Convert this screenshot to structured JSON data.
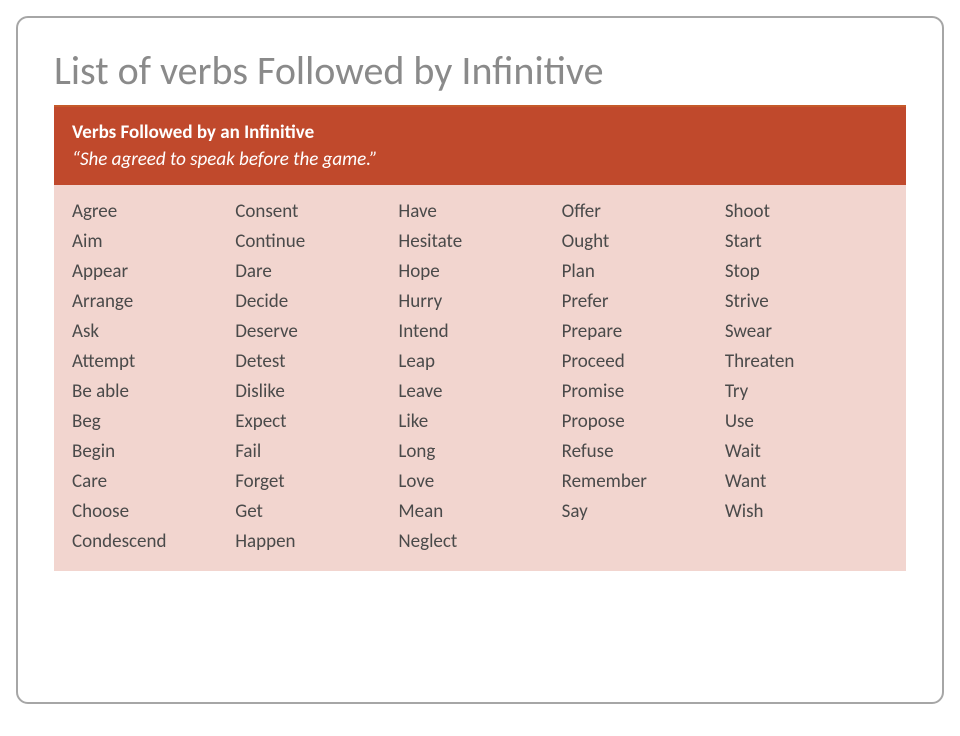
{
  "title": "List of verbs Followed by Infinitive",
  "header": {
    "line1": "Verbs Followed by an Infinitive",
    "line2": "“She agreed to speak before the game.”"
  },
  "colors": {
    "frame_border": "#a6a6a6",
    "title_color": "#8a8a8a",
    "title_rule": "#c55a2a",
    "header_bg": "#c0492c",
    "header_text": "#ffffff",
    "body_bg": "#f2d5cf",
    "body_text": "#4a4a4a"
  },
  "typography": {
    "title_fontsize": 40,
    "header_fontsize": 19,
    "body_fontsize": 19,
    "font_family": "Calibri"
  },
  "columns": [
    [
      "Agree",
      "Aim",
      "Appear",
      "Arrange",
      "Ask",
      "Attempt",
      "Be able",
      "Beg",
      "Begin",
      "Care",
      "Choose",
      "Condescend"
    ],
    [
      "Consent",
      "Continue",
      "Dare",
      "Decide",
      "Deserve",
      "Detest",
      "Dislike",
      "Expect",
      "Fail",
      "Forget",
      "Get",
      "Happen"
    ],
    [
      "Have",
      "Hesitate",
      "Hope",
      "Hurry",
      "Intend",
      "Leap",
      "Leave",
      "Like",
      "Long",
      "Love",
      "Mean",
      "Neglect"
    ],
    [
      "Offer",
      "Ought",
      "Plan",
      "Prefer",
      "Prepare",
      "Proceed",
      "Promise",
      "Propose",
      "Refuse",
      "Remember",
      "Say"
    ],
    [
      "Shoot",
      "Start",
      "Stop",
      "Strive",
      "Swear",
      "Threaten",
      "Try",
      "Use",
      "Wait",
      "Want",
      "Wish"
    ]
  ]
}
